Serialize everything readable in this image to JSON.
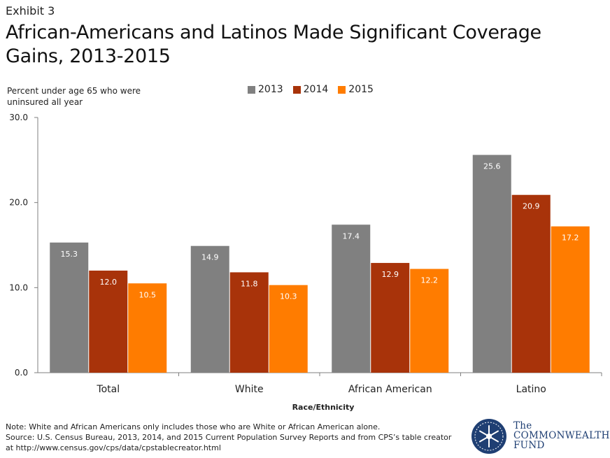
{
  "exhibit": "Exhibit 3",
  "title": "African-Americans and Latinos Made Significant Coverage Gains, 2013-2015",
  "y_axis_label": "Percent under age 65 who were uninsured all year",
  "colors": {
    "2013": "#808080",
    "2014": "#a8330a",
    "2015": "#ff7c00"
  },
  "chart_data": {
    "type": "bar",
    "title": "African-Americans and Latinos Made Significant Coverage Gains, 2013-2015",
    "xlabel": "Race/Ethnicity",
    "ylabel": "Percent under age 65 who were uninsured all year",
    "ylim": [
      0,
      30
    ],
    "yticks": [
      "0.0",
      "10.0",
      "20.0",
      "30.0"
    ],
    "categories": [
      "Total",
      "White",
      "African American",
      "Latino"
    ],
    "series": [
      {
        "name": "2013",
        "values": [
          15.3,
          14.9,
          17.4,
          25.6
        ],
        "labels": [
          "15.3",
          "14.9",
          "17.4",
          "25.6"
        ]
      },
      {
        "name": "2014",
        "values": [
          12.0,
          11.8,
          12.9,
          20.9
        ],
        "labels": [
          "12.0",
          "11.8",
          "12.9",
          "20.9"
        ]
      },
      {
        "name": "2015",
        "values": [
          10.5,
          10.3,
          12.2,
          17.2
        ],
        "labels": [
          "10.5",
          "10.3",
          "12.2",
          "17.2"
        ]
      }
    ],
    "legend": "top-center",
    "grid": false
  },
  "note": {
    "line1": "Note: White and African Americans only includes those who are White or African American alone.",
    "line2": "Source: U.S. Census Bureau, 2013, 2014, and 2015 Current Population Survey Reports and from CPS’s table creator",
    "line3": "at http://www.census.gov/cps/data/cpstablecreator.html"
  },
  "logo": {
    "line1": "The",
    "line2": "COMMONWEALTH",
    "line3": "FUND"
  }
}
